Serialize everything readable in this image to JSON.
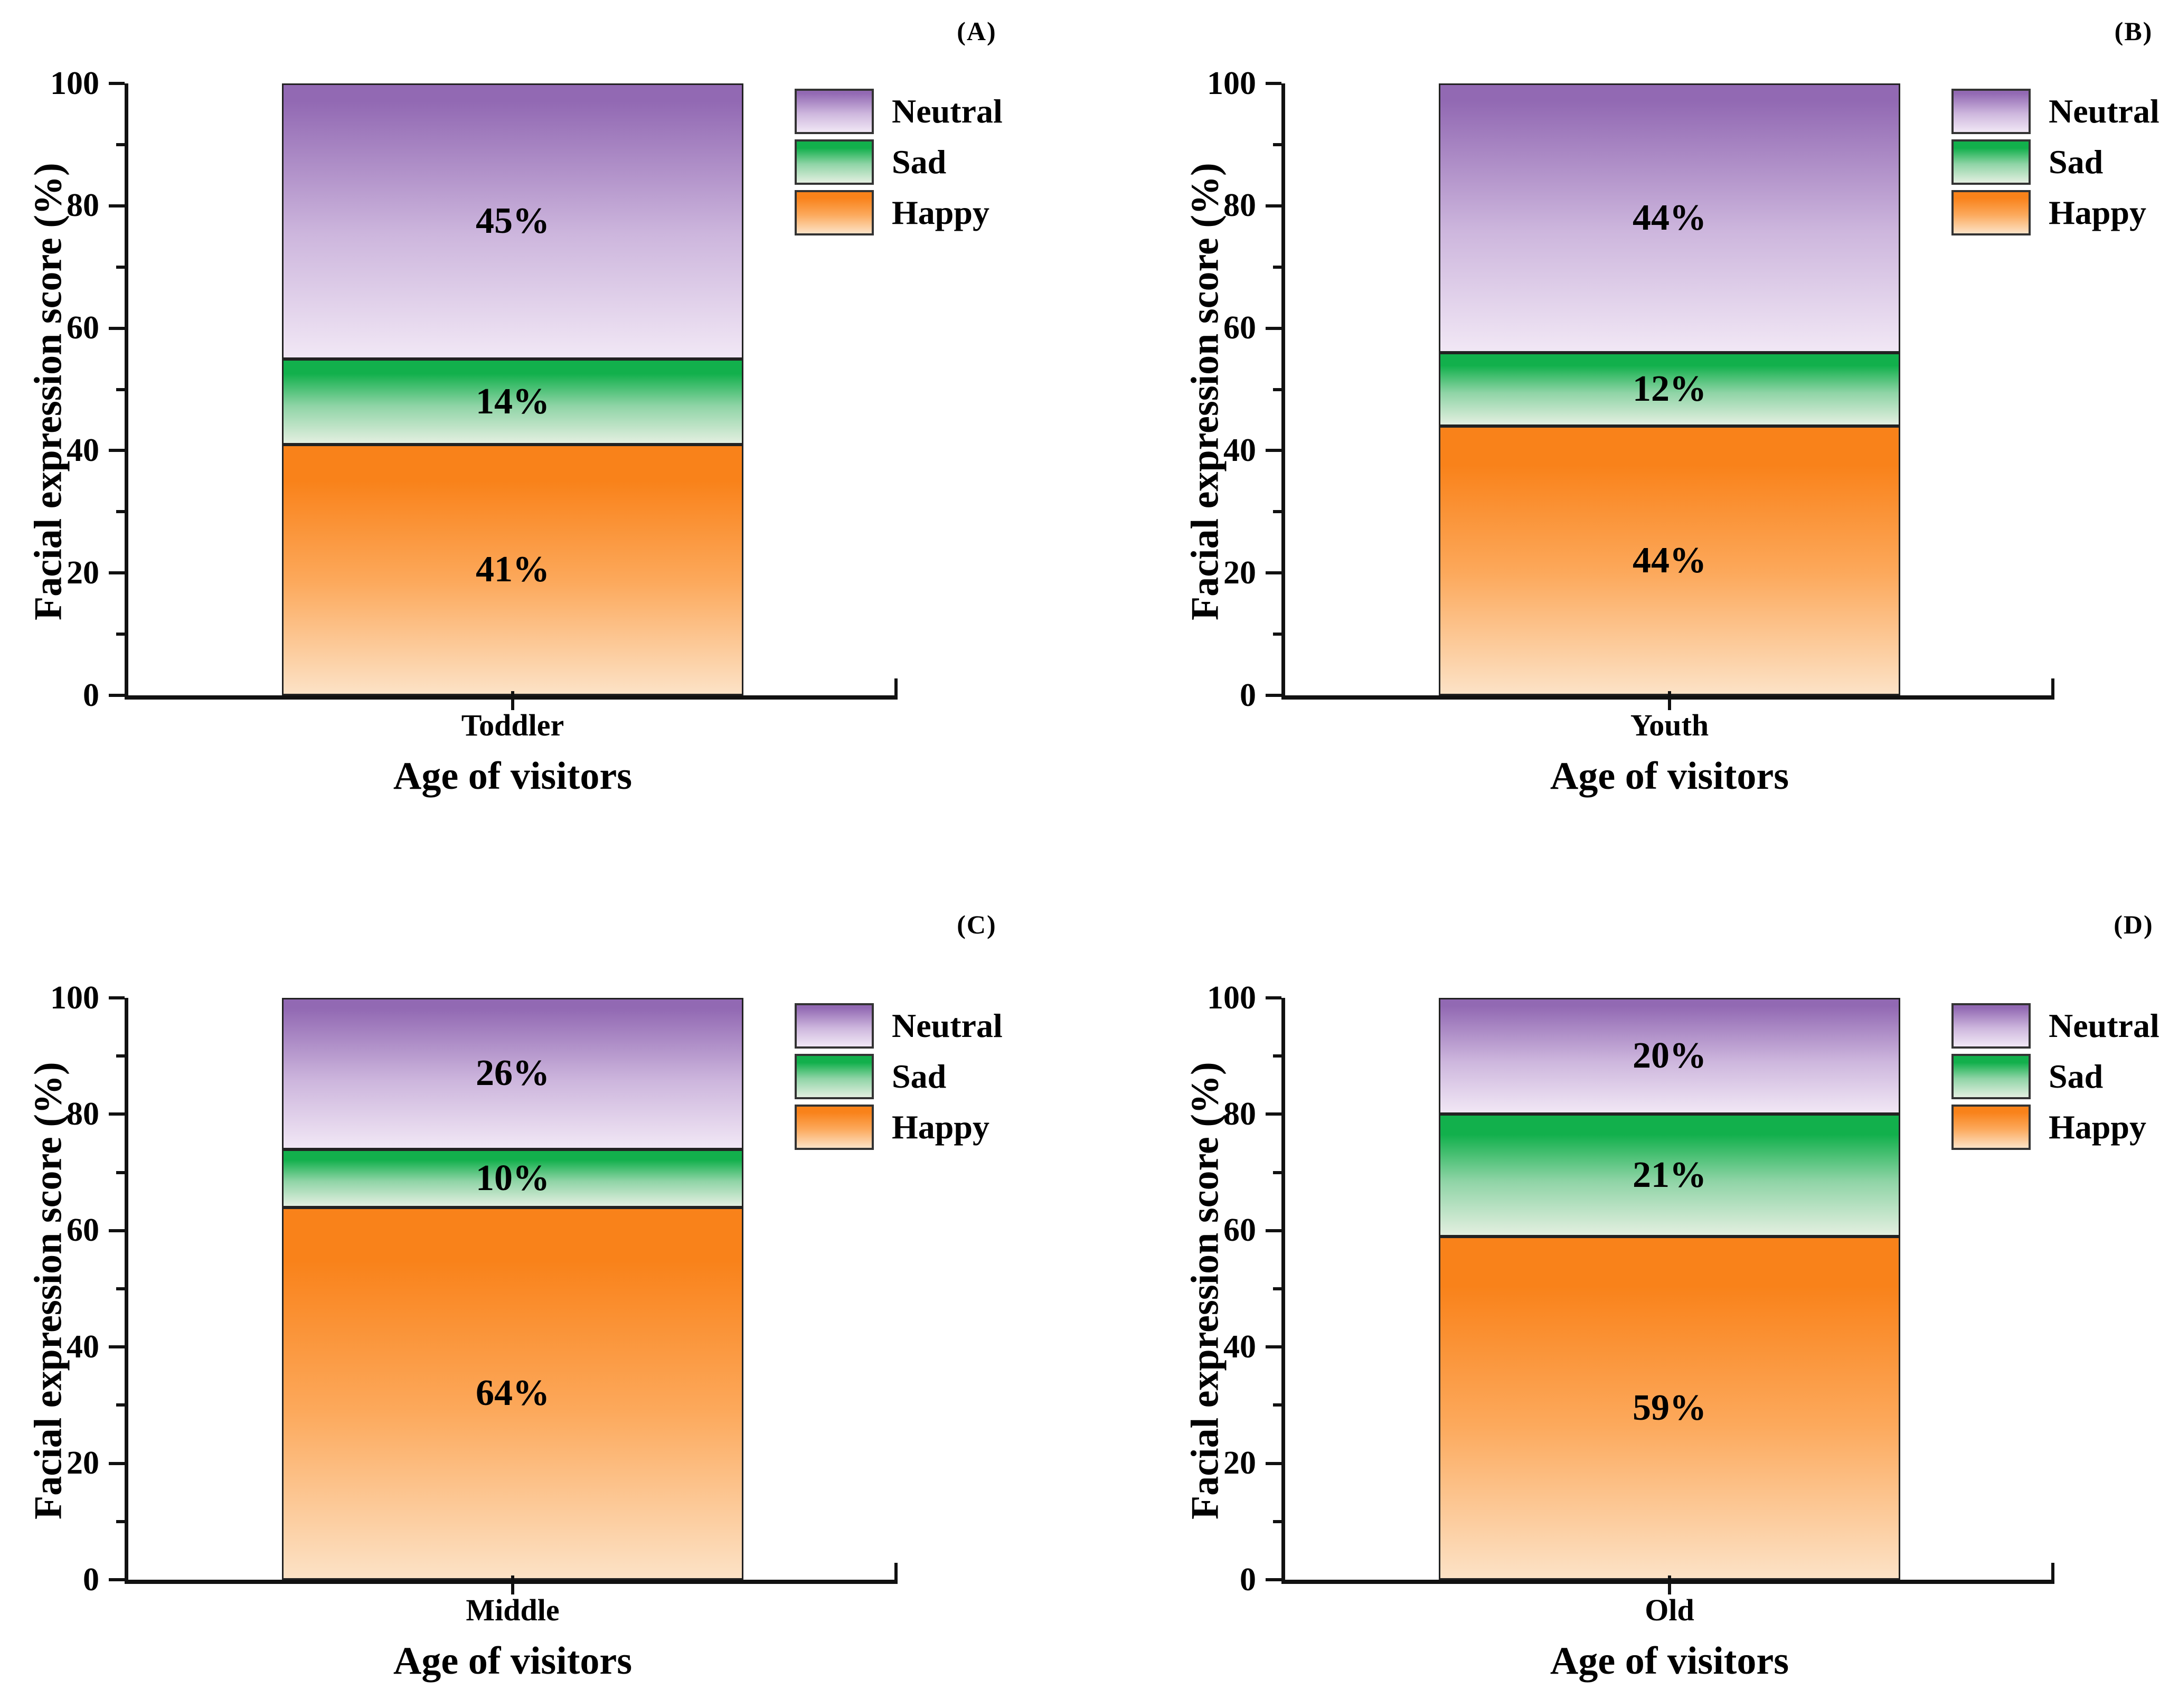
{
  "figure": {
    "y_axis": {
      "title": "Facial expression score (%)",
      "range": [
        0,
        100
      ],
      "major_ticks": [
        0,
        20,
        40,
        60,
        80,
        100
      ],
      "minor_ticks": [
        10,
        30,
        50,
        70,
        90
      ]
    },
    "x_axis": {
      "title": "Age of visitors"
    },
    "legend": {
      "position": "top-right",
      "items": [
        "Neutral",
        "Sad",
        "Happy"
      ]
    },
    "colors": {
      "neutral": {
        "top": "#9269b3",
        "mid": "#cdb6dd",
        "bottom": "#f1e7f5",
        "hold": 6
      },
      "sad": {
        "top": "#12b04c",
        "mid": "#8fd4a6",
        "bottom": "#e3efe0",
        "hold": 16
      },
      "happy": {
        "top": "#f9821a",
        "mid": "#fca95c",
        "bottom": "#fce2c6",
        "hold": 14
      },
      "segment_border": "#222222",
      "axis": "#111111",
      "text": "#000000"
    }
  },
  "chart_data": [
    {
      "type": "bar",
      "stacked": true,
      "panel": "(A)",
      "category": "Toddler",
      "xlabel": "Age of visitors",
      "ylabel": "Facial expression score (%)",
      "ylim": [
        0,
        100
      ],
      "series": [
        {
          "name": "Neutral",
          "value": 45,
          "label": "45%"
        },
        {
          "name": "Sad",
          "value": 14,
          "label": "14%"
        },
        {
          "name": "Happy",
          "value": 41,
          "label": "41%"
        }
      ]
    },
    {
      "type": "bar",
      "stacked": true,
      "panel": "(B)",
      "category": "Youth",
      "xlabel": "Age of visitors",
      "ylabel": "Facial expression score (%)",
      "ylim": [
        0,
        100
      ],
      "series": [
        {
          "name": "Neutral",
          "value": 44,
          "label": "44%"
        },
        {
          "name": "Sad",
          "value": 12,
          "label": "12%"
        },
        {
          "name": "Happy",
          "value": 44,
          "label": "44%"
        }
      ]
    },
    {
      "type": "bar",
      "stacked": true,
      "panel": "(C)",
      "category": "Middle",
      "xlabel": "Age of visitors",
      "ylabel": "Facial expression score (%)",
      "ylim": [
        0,
        100
      ],
      "series": [
        {
          "name": "Neutral",
          "value": 26,
          "label": "26%"
        },
        {
          "name": "Sad",
          "value": 10,
          "label": "10%"
        },
        {
          "name": "Happy",
          "value": 64,
          "label": "64%"
        }
      ]
    },
    {
      "type": "bar",
      "stacked": true,
      "panel": "(D)",
      "category": "Old",
      "xlabel": "Age of visitors",
      "ylabel": "Facial expression score (%)",
      "ylim": [
        0,
        100
      ],
      "series": [
        {
          "name": "Neutral",
          "value": 20,
          "label": "20%"
        },
        {
          "name": "Sad",
          "value": 21,
          "label": "21%"
        },
        {
          "name": "Happy",
          "value": 59,
          "label": "59%"
        }
      ]
    }
  ]
}
